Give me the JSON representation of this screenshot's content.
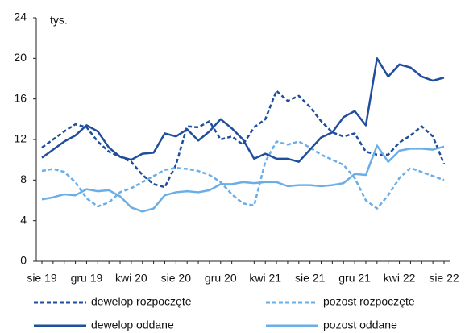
{
  "chart_data": {
    "type": "line",
    "annotation": "tys.",
    "categories": [
      "sie 19",
      null,
      null,
      null,
      "gru 19",
      null,
      null,
      null,
      "kwi 20",
      null,
      null,
      null,
      "sie 20",
      null,
      null,
      null,
      "gru 20",
      null,
      null,
      null,
      "kwi 21",
      null,
      null,
      null,
      "sie 21",
      null,
      null,
      null,
      "gru 21",
      null,
      null,
      null,
      "kwi 22",
      null,
      null,
      null,
      "sie 22"
    ],
    "ylim": [
      0,
      24
    ],
    "yticks": [
      0,
      4,
      8,
      12,
      16,
      20,
      24
    ],
    "legend": "bottom",
    "series": [
      {
        "name": "dewelop rozpoczęte",
        "color": "#1f4e9c",
        "dashed": true,
        "values": [
          11.2,
          12,
          12.8,
          13.5,
          13.2,
          11.8,
          10.8,
          10.3,
          9.8,
          8.5,
          7.6,
          7.3,
          9.5,
          13.3,
          13.2,
          13.8,
          12,
          12.3,
          11.5,
          13.2,
          14,
          16.8,
          15.8,
          16.3,
          15.2,
          13.8,
          12.7,
          12.3,
          12.6,
          10.8,
          10.5,
          10.5,
          11.7,
          12.4,
          13.3,
          12.3,
          9.6
        ]
      },
      {
        "name": "pozost rozpoczęte",
        "color": "#6aaee8",
        "dashed": true,
        "values": [
          8.9,
          9.1,
          8.8,
          7.8,
          6.2,
          5.4,
          5.8,
          6.8,
          7.2,
          7.8,
          8.4,
          9,
          9.2,
          9.1,
          8.9,
          8.5,
          7.8,
          6.6,
          5.7,
          5.5,
          9.8,
          11.8,
          11.5,
          11.8,
          11.2,
          10.5,
          10,
          9.5,
          8.2,
          6,
          5.2,
          6.5,
          8.2,
          9.2,
          8.8,
          8.4,
          8
        ]
      },
      {
        "name": "dewelop oddane",
        "color": "#1f4e9c",
        "dashed": false,
        "values": [
          10.2,
          11,
          11.8,
          12.4,
          13.4,
          12.8,
          11.2,
          10.3,
          10,
          10.6,
          10.7,
          12.6,
          12.3,
          13,
          11.9,
          12.8,
          14,
          13.1,
          12,
          10.1,
          10.6,
          10.1,
          10.1,
          9.8,
          11,
          12.2,
          12.7,
          14.2,
          14.8,
          13.4,
          20,
          18.2,
          19.4,
          19.1,
          18.2,
          17.8,
          18.1
        ]
      },
      {
        "name": "pozost oddane",
        "color": "#6aaee8",
        "dashed": false,
        "values": [
          6.1,
          6.3,
          6.6,
          6.5,
          7.1,
          6.9,
          7,
          6.4,
          5.3,
          4.9,
          5.2,
          6.5,
          6.8,
          6.9,
          6.8,
          7,
          7.6,
          7.6,
          7.8,
          7.7,
          7.8,
          7.8,
          7.4,
          7.5,
          7.5,
          7.4,
          7.5,
          7.7,
          8.6,
          8.5,
          11.4,
          9.8,
          10.9,
          11.1,
          11.1,
          11,
          11.3
        ]
      }
    ]
  }
}
